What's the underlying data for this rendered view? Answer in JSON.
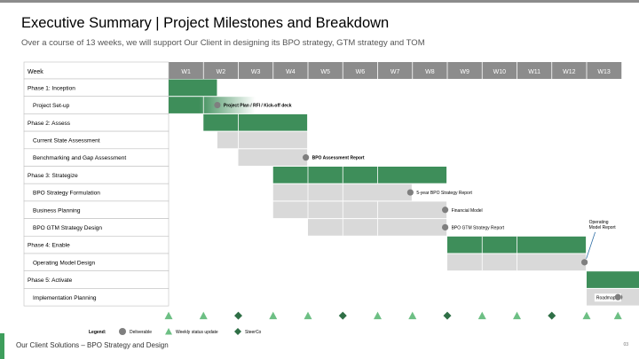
{
  "header": {
    "title": "Executive Summary | Project Milestones and Breakdown",
    "subtitle": "Over a course of 13 weeks, we will support Our Client in designing its BPO strategy, GTM strategy and TOM"
  },
  "colors": {
    "accent_green": "#3e8e5a",
    "light_grey": "#d9d9d9",
    "header_grey": "#8c8c8c",
    "milestone_grey": "#7f7f7f",
    "status_green": "#6dbf84",
    "steerco_green": "#2f6f46"
  },
  "gantt": {
    "week_header": "Week",
    "weeks": [
      "W1",
      "W2",
      "W3",
      "W4",
      "W5",
      "W6",
      "W7",
      "W8",
      "W9",
      "W10",
      "W11",
      "W12",
      "W13"
    ],
    "rows": [
      {
        "label": "Phase 1: Inception",
        "type": "phase",
        "start": 1,
        "end": 1.4,
        "color": "green",
        "fade": false
      },
      {
        "label": "Project Set-up",
        "type": "task",
        "start": 1,
        "end": 2.5,
        "color": "green",
        "fade": true
      },
      {
        "label": "Phase 2: Assess",
        "type": "phase",
        "start": 2,
        "end": 3.99,
        "color": "green",
        "fade": false
      },
      {
        "label": "Current State Assessment",
        "type": "task",
        "start": 2.4,
        "end": 3.99,
        "color": "grey",
        "fade": false
      },
      {
        "label": "Benchmarking and Gap Assessment",
        "type": "task",
        "start": 3,
        "end": 3.99,
        "color": "grey",
        "fade": false
      },
      {
        "label": "Phase 3:  Strategize",
        "type": "phase",
        "start": 4,
        "end": 7.99,
        "color": "green",
        "fade": false
      },
      {
        "label": "BPO Strategy Formulation",
        "type": "task",
        "start": 4,
        "end": 6.99,
        "color": "grey",
        "fade": false
      },
      {
        "label": "Business Planning",
        "type": "task",
        "start": 4,
        "end": 7.99,
        "color": "grey",
        "fade": false
      },
      {
        "label": "BPO GTM Strategy Design",
        "type": "task",
        "start": 5,
        "end": 7.99,
        "color": "grey",
        "fade": false
      },
      {
        "label": "Phase 4: Enable",
        "type": "phase",
        "start": 9,
        "end": 11.99,
        "color": "green",
        "fade": false
      },
      {
        "label": "Operating Model Design",
        "type": "task",
        "start": 9,
        "end": 11.99,
        "color": "grey",
        "fade": false
      },
      {
        "label": "Phase 5: Activate",
        "type": "phase",
        "start": 13,
        "end": 13.99,
        "color": "green",
        "fade": false
      },
      {
        "label": "Implementation Planning",
        "type": "task",
        "start": 13,
        "end": 13.99,
        "color": "grey",
        "fade": false
      }
    ],
    "deliverables": [
      {
        "row": 1,
        "week": 1.45,
        "label": "Project Plan / RFI / Kick-off deck",
        "bold": true,
        "label_side": "right"
      },
      {
        "row": 4,
        "week": 3.99,
        "label": "BPO Assessment Report",
        "bold": true,
        "label_side": "right"
      },
      {
        "row": 6,
        "week": 6.99,
        "label": "5-year BPO Strategy Report",
        "bold": false,
        "label_side": "right"
      },
      {
        "row": 7,
        "week": 7.99,
        "label": "Financial Model",
        "bold": false,
        "label_side": "right"
      },
      {
        "row": 8,
        "week": 7.99,
        "label": "BPO GTM Strategy Report",
        "bold": false,
        "label_side": "right"
      },
      {
        "row": 10,
        "week": 11.99,
        "label": "Operating Model Report",
        "bold": false,
        "label_side": "callout"
      },
      {
        "row": 12,
        "week": 12.99,
        "label": "Roadmap",
        "bold": false,
        "label_side": "box"
      }
    ],
    "bottom_markers": [
      "status",
      "status",
      "steerco",
      "status",
      "status",
      "steerco",
      "status",
      "status",
      "steerco",
      "status",
      "status",
      "steerco",
      "status"
    ]
  },
  "legend": {
    "title": "Legend:",
    "items": [
      {
        "icon": "deliverable-icon",
        "label": "Deliverable"
      },
      {
        "icon": "status-update-icon",
        "label": "Weekly status update"
      },
      {
        "icon": "steerco-icon",
        "label": "SteerCo"
      }
    ]
  },
  "footer": {
    "text": "Our Client Solutions – BPO Strategy and Design",
    "page": "03"
  }
}
